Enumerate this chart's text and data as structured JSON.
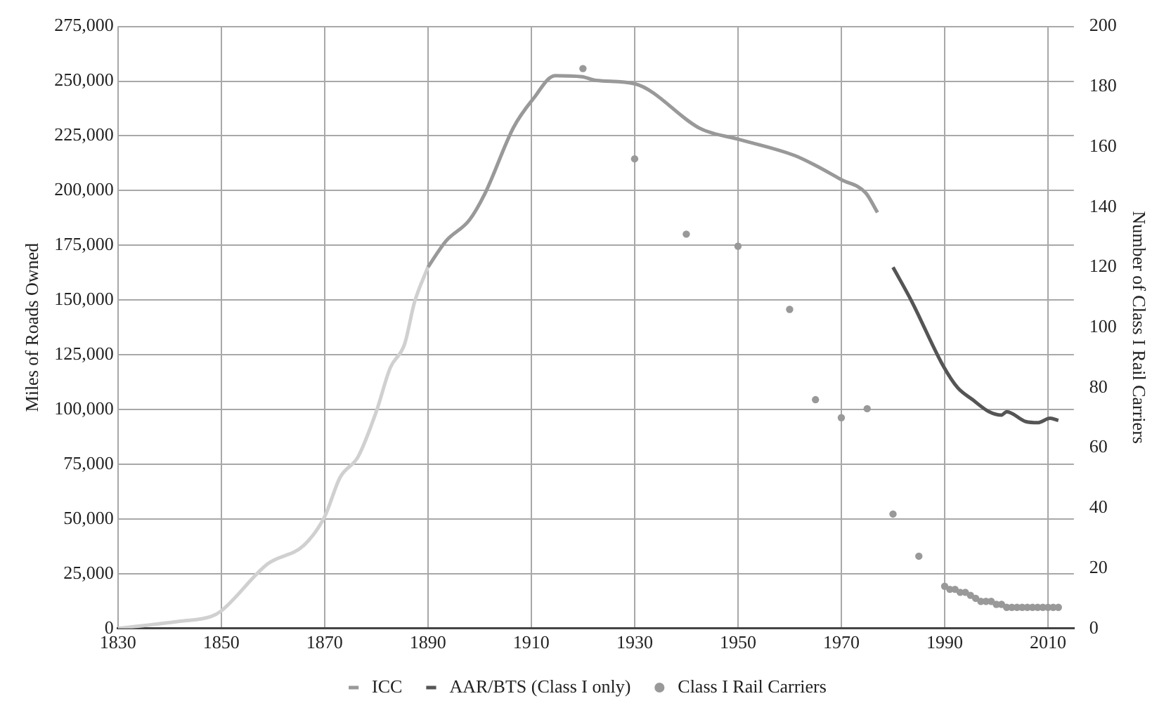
{
  "chart_data": {
    "type": "line",
    "ylabel": "Miles of Roads Owned",
    "y2label": "Number of Class I Rail Carriers",
    "xlim": [
      1830,
      2015
    ],
    "xticks": [
      1830,
      1850,
      1870,
      1890,
      1910,
      1930,
      1950,
      1970,
      1990,
      2010
    ],
    "ylim": [
      0,
      275000
    ],
    "yticks": [
      {
        "value": 0,
        "label": "0"
      },
      {
        "value": 25000,
        "label": "25,000"
      },
      {
        "value": 50000,
        "label": "50,000"
      },
      {
        "value": 75000,
        "label": "75,000"
      },
      {
        "value": 100000,
        "label": "100,000"
      },
      {
        "value": 125000,
        "label": "125,000"
      },
      {
        "value": 150000,
        "label": "150,000"
      },
      {
        "value": 175000,
        "label": "175,000"
      },
      {
        "value": 200000,
        "label": "200,000"
      },
      {
        "value": 225000,
        "label": "225,000"
      },
      {
        "value": 250000,
        "label": "250,000"
      },
      {
        "value": 275000,
        "label": "275,000"
      }
    ],
    "y2lim": [
      0,
      200
    ],
    "y2ticks": [
      0,
      20,
      40,
      60,
      80,
      100,
      120,
      140,
      160,
      180,
      200
    ],
    "grid": true,
    "legend": "bottom",
    "series": [
      {
        "color": "#d0d0d0",
        "x": [
          1830,
          1842,
          1848,
          1850,
          1859,
          1866,
          1870,
          1873,
          1876.5,
          1880,
          1882.7,
          1885.5,
          1887.4,
          1890
        ],
        "values": [
          0,
          3300,
          5400,
          8000,
          29500,
          38000,
          51000,
          69000,
          78500,
          99000,
          119000,
          130000,
          149000,
          165000
        ]
      },
      {
        "name": "ICC",
        "color": "#999999",
        "x": [
          1890,
          1893.5,
          1898,
          1901,
          1906.6,
          1910.4,
          1914.6,
          1919.8,
          1922.6,
          1930,
          1943,
          1950,
          1961,
          1965,
          1970,
          1974.7,
          1977
        ],
        "values": [
          165000,
          177000,
          186500,
          198500,
          229000,
          242000,
          252500,
          252000,
          250300,
          248800,
          228000,
          223500,
          216000,
          211500,
          205000,
          199000,
          190000
        ]
      },
      {
        "name": "AAR/BTS (Class I only)",
        "color": "#555555",
        "x": [
          1980,
          1983.6,
          1989.7,
          1992.5,
          1995.4,
          1998.6,
          2001,
          2002,
          2005.7,
          2008,
          2010.4,
          2012
        ],
        "values": [
          165000,
          149500,
          120000,
          110000,
          104500,
          99000,
          97500,
          99000,
          94500,
          94000,
          96000,
          95000
        ]
      },
      {
        "type": "scatter",
        "name": "Class I Rail Carriers",
        "color": "#999999",
        "axis": "y2",
        "x": [
          1920,
          1930,
          1940,
          1950,
          1960,
          1965,
          1970,
          1975,
          1980,
          1985,
          1990,
          1991,
          1992,
          1993,
          1994,
          1995,
          1996,
          1997,
          1998,
          1999,
          2000,
          2001,
          2002,
          2003,
          2004,
          2005,
          2006,
          2007,
          2008,
          2009,
          2010,
          2011,
          2012
        ],
        "values": [
          186,
          156,
          131,
          127,
          106,
          76,
          70,
          73,
          38,
          24,
          14,
          13,
          13,
          12,
          12,
          11,
          10,
          9,
          9,
          9,
          8,
          8,
          7,
          7,
          7,
          7,
          7,
          7,
          7,
          7,
          7,
          7,
          7
        ]
      }
    ]
  }
}
